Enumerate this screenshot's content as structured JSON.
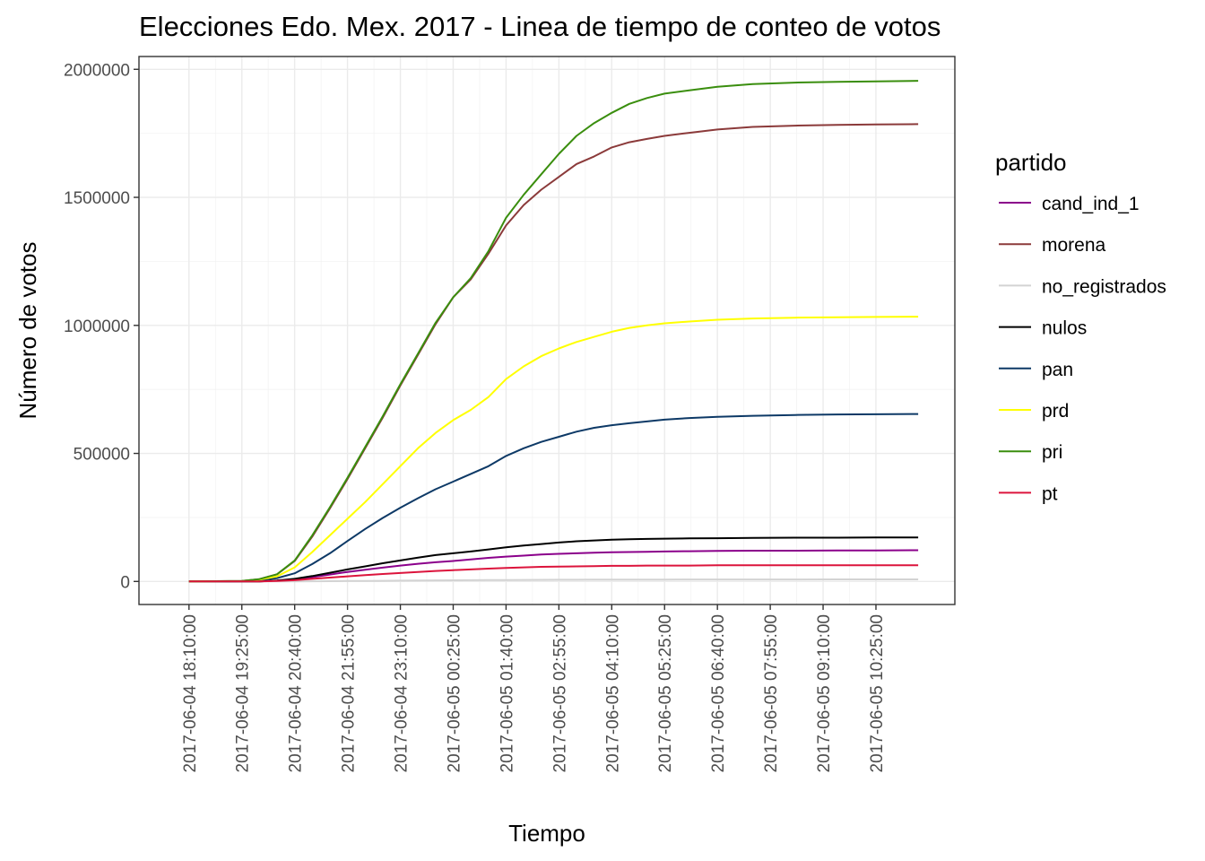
{
  "chart_data": {
    "type": "line",
    "title": "Elecciones Edo. Mex. 2017 - Linea de tiempo de conteo de votos",
    "xlabel": "Tiempo",
    "ylabel": "Número de votos",
    "ylim": [
      -90000,
      2050000
    ],
    "xlim": [
      "2017-06-04 16:59:00",
      "2017-06-05 12:17:00"
    ],
    "y_ticks": [
      0,
      500000,
      1000000,
      1500000,
      2000000
    ],
    "y_tick_labels": [
      "0",
      "500000",
      "1000000",
      "1500000",
      "2000000"
    ],
    "x_ticks": [
      "2017-06-04 18:10:00",
      "2017-06-04 19:25:00",
      "2017-06-04 20:40:00",
      "2017-06-04 21:55:00",
      "2017-06-04 23:10:00",
      "2017-06-05 00:25:00",
      "2017-06-05 01:40:00",
      "2017-06-05 02:55:00",
      "2017-06-05 04:10:00",
      "2017-06-05 05:25:00",
      "2017-06-05 06:40:00",
      "2017-06-05 07:55:00",
      "2017-06-05 09:10:00",
      "2017-06-05 10:25:00"
    ],
    "x_tick_labels": [
      "2017-06-04 18:10:00",
      "2017-06-04 19:25:00",
      "2017-06-04 20:40:00",
      "2017-06-04 21:55:00",
      "2017-06-04 23:10:00",
      "2017-06-05 00:25:00",
      "2017-06-05 01:40:00",
      "2017-06-05 02:55:00",
      "2017-06-05 04:10:00",
      "2017-06-05 05:25:00",
      "2017-06-05 06:40:00",
      "2017-06-05 07:55:00",
      "2017-06-05 09:10:00",
      "2017-06-05 10:25:00"
    ],
    "grid": true,
    "legend": {
      "title": "partido",
      "position": "right"
    },
    "x": [
      "2017-06-04 18:10:00",
      "2017-06-04 19:25:00",
      "2017-06-04 19:50:00",
      "2017-06-04 20:15:00",
      "2017-06-04 20:40:00",
      "2017-06-04 21:05:00",
      "2017-06-04 21:30:00",
      "2017-06-04 21:55:00",
      "2017-06-04 22:20:00",
      "2017-06-04 22:45:00",
      "2017-06-04 23:10:00",
      "2017-06-04 23:35:00",
      "2017-06-05 00:00:00",
      "2017-06-05 00:25:00",
      "2017-06-05 00:50:00",
      "2017-06-05 01:15:00",
      "2017-06-05 01:40:00",
      "2017-06-05 02:05:00",
      "2017-06-05 02:30:00",
      "2017-06-05 02:55:00",
      "2017-06-05 03:20:00",
      "2017-06-05 03:45:00",
      "2017-06-05 04:10:00",
      "2017-06-05 04:35:00",
      "2017-06-05 05:00:00",
      "2017-06-05 05:25:00",
      "2017-06-05 06:00:00",
      "2017-06-05 06:40:00",
      "2017-06-05 07:30:00",
      "2017-06-05 08:30:00",
      "2017-06-05 09:30:00",
      "2017-06-05 10:25:00",
      "2017-06-05 11:25:00"
    ],
    "series": [
      {
        "name": "cand_ind_1",
        "color": "#8B008B",
        "values": [
          0,
          0,
          500,
          3000,
          8000,
          17000,
          27000,
          37000,
          46000,
          54000,
          62000,
          69000,
          75000,
          80000,
          86000,
          92000,
          97000,
          101000,
          105000,
          108000,
          110000,
          112000,
          114000,
          115000,
          116000,
          117000,
          118000,
          119000,
          120000,
          120000,
          121000,
          121000,
          122000
        ]
      },
      {
        "name": "morena",
        "color": "#8B3A3A",
        "values": [
          0,
          2000,
          9000,
          28000,
          80000,
          175000,
          285000,
          400000,
          520000,
          640000,
          765000,
          885000,
          1005000,
          1110000,
          1180000,
          1280000,
          1390000,
          1470000,
          1530000,
          1580000,
          1630000,
          1660000,
          1695000,
          1715000,
          1728000,
          1740000,
          1752000,
          1765000,
          1775000,
          1780000,
          1783000,
          1785000,
          1786000
        ]
      },
      {
        "name": "no_registrados",
        "color": "#D3D3D3",
        "values": [
          0,
          0,
          0,
          100,
          300,
          700,
          1100,
          1600,
          2100,
          2600,
          3100,
          3600,
          4100,
          4500,
          4900,
          5300,
          5700,
          6000,
          6300,
          6600,
          6800,
          7000,
          7200,
          7300,
          7400,
          7500,
          7600,
          7700,
          7800,
          7800,
          7900,
          7900,
          8000
        ]
      },
      {
        "name": "nulos",
        "color": "#000000",
        "values": [
          0,
          0,
          500,
          3500,
          10000,
          21000,
          34000,
          47000,
          59000,
          71000,
          82000,
          93000,
          103000,
          110000,
          117000,
          125000,
          133000,
          140000,
          146000,
          152000,
          157000,
          160000,
          163000,
          165000,
          166000,
          167000,
          168000,
          169000,
          170000,
          171000,
          171000,
          172000,
          172000
        ]
      },
      {
        "name": "pan",
        "color": "#0D3966",
        "values": [
          0,
          1000,
          5000,
          13000,
          32000,
          68000,
          110000,
          158000,
          205000,
          248000,
          288000,
          325000,
          360000,
          390000,
          420000,
          450000,
          490000,
          520000,
          545000,
          565000,
          585000,
          600000,
          610000,
          618000,
          625000,
          632000,
          638000,
          643000,
          647000,
          650000,
          652000,
          653000,
          654000
        ]
      },
      {
        "name": "prd",
        "color": "#FFFF00",
        "values": [
          0,
          1500,
          7000,
          20000,
          55000,
          115000,
          180000,
          245000,
          310000,
          380000,
          450000,
          520000,
          580000,
          630000,
          670000,
          720000,
          790000,
          840000,
          880000,
          910000,
          935000,
          955000,
          975000,
          990000,
          1000000,
          1008000,
          1015000,
          1022000,
          1027000,
          1030000,
          1032000,
          1033000,
          1034000
        ]
      },
      {
        "name": "pri",
        "color": "#3A8E0E",
        "values": [
          0,
          2000,
          9000,
          28000,
          82000,
          180000,
          290000,
          405000,
          525000,
          645000,
          770000,
          890000,
          1010000,
          1110000,
          1185000,
          1290000,
          1420000,
          1510000,
          1590000,
          1670000,
          1740000,
          1790000,
          1830000,
          1865000,
          1888000,
          1905000,
          1918000,
          1932000,
          1942000,
          1948000,
          1951000,
          1953000,
          1955000
        ]
      },
      {
        "name": "pt",
        "color": "#DC143C",
        "values": [
          0,
          0,
          300,
          2000,
          5000,
          10000,
          15000,
          20000,
          25000,
          29000,
          33000,
          37000,
          41000,
          44000,
          47000,
          50000,
          53000,
          55000,
          57000,
          58000,
          59000,
          60000,
          61000,
          61000,
          62000,
          62000,
          62000,
          63000,
          63000,
          63000,
          63000,
          63000,
          63000
        ]
      }
    ]
  }
}
